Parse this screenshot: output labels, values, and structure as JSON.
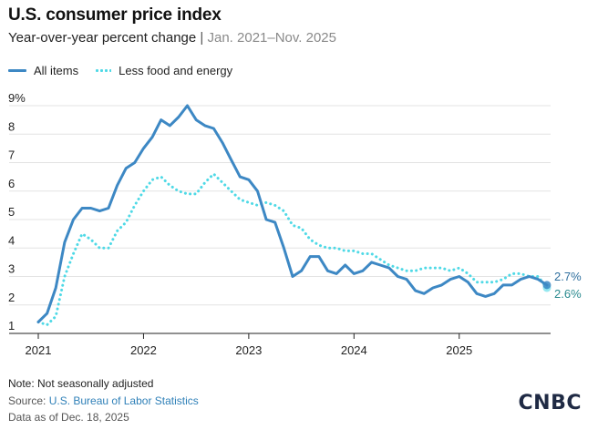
{
  "header": {
    "title": "U.S. consumer price index",
    "subtitle_main": "Year-over-year percent change",
    "subtitle_sep": " | ",
    "subtitle_range": "Jan. 2021–Nov. 2025"
  },
  "footer": {
    "note": "Note: Not seasonally adjusted",
    "source_label": "Source: ",
    "source_link": "U.S. Bureau of Labor Statistics",
    "as_of": "Data as of Dec. 18, 2025"
  },
  "logo": {
    "text": "CNBC"
  },
  "colors": {
    "all_items": "#3d88c4",
    "core": "#4fd9e6",
    "end_label_all": "#2f6f9e",
    "end_label_core": "#2a8a8f",
    "grid": "#e3e3e3"
  },
  "chart_data": {
    "type": "line",
    "title": "U.S. consumer price index",
    "subtitle": "Year-over-year percent change | Jan. 2021–Nov. 2025",
    "ylim": [
      1,
      9
    ],
    "yticks": [
      1,
      2,
      3,
      4,
      5,
      6,
      7,
      8,
      9
    ],
    "ytick_labels": [
      "1",
      "2",
      "3",
      "4",
      "5",
      "6",
      "7",
      "8",
      "9%"
    ],
    "xticks": [
      "2021",
      "2022",
      "2023",
      "2024",
      "2025"
    ],
    "x": [
      "2021-01",
      "2021-02",
      "2021-03",
      "2021-04",
      "2021-05",
      "2021-06",
      "2021-07",
      "2021-08",
      "2021-09",
      "2021-10",
      "2021-11",
      "2021-12",
      "2022-01",
      "2022-02",
      "2022-03",
      "2022-04",
      "2022-05",
      "2022-06",
      "2022-07",
      "2022-08",
      "2022-09",
      "2022-10",
      "2022-11",
      "2022-12",
      "2023-01",
      "2023-02",
      "2023-03",
      "2023-04",
      "2023-05",
      "2023-06",
      "2023-07",
      "2023-08",
      "2023-09",
      "2023-10",
      "2023-11",
      "2023-12",
      "2024-01",
      "2024-02",
      "2024-03",
      "2024-04",
      "2024-05",
      "2024-06",
      "2024-07",
      "2024-08",
      "2024-09",
      "2024-10",
      "2024-11",
      "2024-12",
      "2025-01",
      "2025-02",
      "2025-03",
      "2025-04",
      "2025-05",
      "2025-06",
      "2025-07",
      "2025-08",
      "2025-09",
      "2025-10",
      "2025-11"
    ],
    "legend_position": "top-left",
    "series": [
      {
        "name": "All items",
        "style": "solid",
        "values": [
          1.4,
          1.7,
          2.6,
          4.2,
          5.0,
          5.4,
          5.4,
          5.3,
          5.4,
          6.2,
          6.8,
          7.0,
          7.5,
          7.9,
          8.5,
          8.3,
          8.6,
          9.0,
          8.5,
          8.3,
          8.2,
          7.7,
          7.1,
          6.5,
          6.4,
          6.0,
          5.0,
          4.9,
          4.0,
          3.0,
          3.2,
          3.7,
          3.7,
          3.2,
          3.1,
          3.4,
          3.1,
          3.2,
          3.5,
          3.4,
          3.3,
          3.0,
          2.9,
          2.5,
          2.4,
          2.6,
          2.7,
          2.9,
          3.0,
          2.8,
          2.4,
          2.3,
          2.4,
          2.7,
          2.7,
          2.9,
          3.0,
          2.9,
          2.7
        ],
        "end_label": "2.7%"
      },
      {
        "name": "Less food and energy",
        "style": "dotted",
        "values": [
          1.4,
          1.3,
          1.6,
          3.0,
          3.8,
          4.5,
          4.3,
          4.0,
          4.0,
          4.6,
          4.9,
          5.5,
          6.0,
          6.4,
          6.5,
          6.2,
          6.0,
          5.9,
          5.9,
          6.3,
          6.6,
          6.3,
          6.0,
          5.7,
          5.6,
          5.5,
          5.6,
          5.5,
          5.3,
          4.8,
          4.7,
          4.3,
          4.1,
          4.0,
          4.0,
          3.9,
          3.9,
          3.8,
          3.8,
          3.6,
          3.4,
          3.3,
          3.2,
          3.2,
          3.3,
          3.3,
          3.3,
          3.2,
          3.3,
          3.1,
          2.8,
          2.8,
          2.8,
          2.9,
          3.1,
          3.1,
          3.0,
          3.0,
          2.6
        ],
        "end_label": "2.6%"
      }
    ]
  }
}
